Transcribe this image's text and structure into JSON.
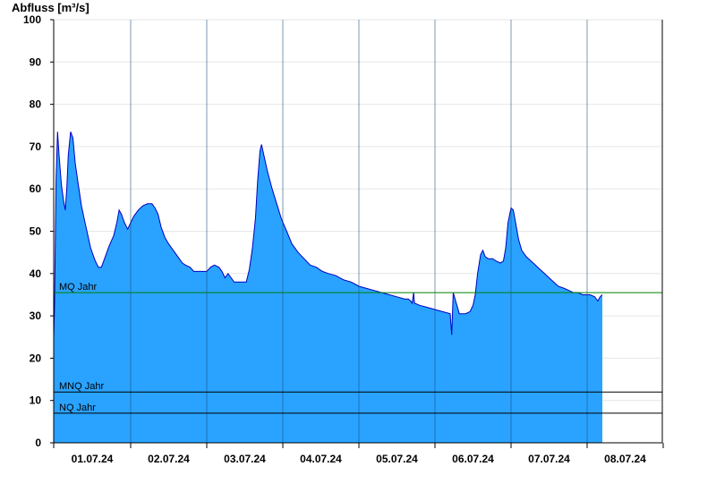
{
  "chart_data": {
    "type": "area",
    "ylabel": "Abfluss [m³/s]",
    "ylim": [
      0,
      100
    ],
    "yticks": [
      0,
      10,
      20,
      30,
      40,
      50,
      60,
      70,
      80,
      90,
      100
    ],
    "day_labels": [
      "01.07.24",
      "02.07.24",
      "03.07.24",
      "04.07.24",
      "05.07.24",
      "06.07.24",
      "07.07.24",
      "08.07.24"
    ],
    "x_range_days": [
      0,
      8
    ],
    "grid": "horizontal",
    "fill_color": "#29a3ff",
    "line_color": "#0000c0",
    "reference_lines": [
      {
        "label": "MQ Jahr",
        "value": 35.5,
        "color": "#008000"
      },
      {
        "label": "MNQ Jahr",
        "value": 12.0,
        "color": "#000000"
      },
      {
        "label": "NQ Jahr",
        "value": 7.0,
        "color": "#000000"
      }
    ],
    "series": [
      {
        "points": [
          [
            0.0,
            25
          ],
          [
            0.01,
            32
          ],
          [
            0.03,
            62
          ],
          [
            0.05,
            73.5
          ],
          [
            0.07,
            68
          ],
          [
            0.1,
            61
          ],
          [
            0.13,
            57
          ],
          [
            0.15,
            55
          ],
          [
            0.17,
            60
          ],
          [
            0.19,
            68
          ],
          [
            0.22,
            73.5
          ],
          [
            0.25,
            72
          ],
          [
            0.28,
            66
          ],
          [
            0.32,
            61
          ],
          [
            0.36,
            56
          ],
          [
            0.42,
            51
          ],
          [
            0.48,
            46
          ],
          [
            0.54,
            43
          ],
          [
            0.58,
            41.5
          ],
          [
            0.62,
            41.5
          ],
          [
            0.66,
            43.5
          ],
          [
            0.72,
            46.5
          ],
          [
            0.78,
            49
          ],
          [
            0.82,
            52
          ],
          [
            0.85,
            55
          ],
          [
            0.88,
            54
          ],
          [
            0.92,
            52
          ],
          [
            0.96,
            50.5
          ],
          [
            1.0,
            52
          ],
          [
            1.04,
            53.5
          ],
          [
            1.1,
            55
          ],
          [
            1.16,
            56
          ],
          [
            1.22,
            56.5
          ],
          [
            1.28,
            56.5
          ],
          [
            1.32,
            55.5
          ],
          [
            1.36,
            54
          ],
          [
            1.4,
            51
          ],
          [
            1.45,
            48.5
          ],
          [
            1.5,
            47
          ],
          [
            1.56,
            45.5
          ],
          [
            1.62,
            44
          ],
          [
            1.68,
            42.5
          ],
          [
            1.72,
            42
          ],
          [
            1.78,
            41.5
          ],
          [
            1.83,
            40.5
          ],
          [
            1.95,
            40.5
          ],
          [
            2.0,
            40.5
          ],
          [
            2.05,
            41.5
          ],
          [
            2.1,
            42
          ],
          [
            2.16,
            41.5
          ],
          [
            2.2,
            40.5
          ],
          [
            2.24,
            39
          ],
          [
            2.28,
            40
          ],
          [
            2.32,
            39
          ],
          [
            2.36,
            38
          ],
          [
            2.44,
            38
          ],
          [
            2.52,
            38
          ],
          [
            2.56,
            41
          ],
          [
            2.6,
            46
          ],
          [
            2.64,
            53
          ],
          [
            2.67,
            62
          ],
          [
            2.7,
            69
          ],
          [
            2.72,
            70.5
          ],
          [
            2.75,
            68
          ],
          [
            2.8,
            64
          ],
          [
            2.86,
            60
          ],
          [
            2.92,
            56.5
          ],
          [
            2.98,
            53
          ],
          [
            3.05,
            50
          ],
          [
            3.12,
            47
          ],
          [
            3.2,
            45
          ],
          [
            3.28,
            43.5
          ],
          [
            3.36,
            42
          ],
          [
            3.44,
            41.5
          ],
          [
            3.52,
            40.5
          ],
          [
            3.6,
            40
          ],
          [
            3.7,
            39.5
          ],
          [
            3.8,
            38.5
          ],
          [
            3.9,
            38
          ],
          [
            4.0,
            37
          ],
          [
            4.1,
            36.5
          ],
          [
            4.2,
            36
          ],
          [
            4.3,
            35.5
          ],
          [
            4.4,
            35
          ],
          [
            4.5,
            34.5
          ],
          [
            4.6,
            34
          ],
          [
            4.65,
            34
          ],
          [
            4.68,
            33.5
          ],
          [
            4.7,
            33
          ],
          [
            4.72,
            35.5
          ],
          [
            4.73,
            33
          ],
          [
            4.8,
            32.5
          ],
          [
            4.9,
            32
          ],
          [
            5.0,
            31.5
          ],
          [
            5.1,
            31
          ],
          [
            5.2,
            30.5
          ],
          [
            5.22,
            25.5
          ],
          [
            5.24,
            35.5
          ],
          [
            5.28,
            33
          ],
          [
            5.32,
            30.5
          ],
          [
            5.4,
            30.5
          ],
          [
            5.46,
            31
          ],
          [
            5.5,
            32.5
          ],
          [
            5.53,
            35
          ],
          [
            5.56,
            40
          ],
          [
            5.6,
            44.5
          ],
          [
            5.63,
            45.5
          ],
          [
            5.66,
            44
          ],
          [
            5.7,
            43.5
          ],
          [
            5.76,
            43.5
          ],
          [
            5.8,
            43
          ],
          [
            5.86,
            42.5
          ],
          [
            5.9,
            43
          ],
          [
            5.93,
            46
          ],
          [
            5.96,
            52
          ],
          [
            6.0,
            55.5
          ],
          [
            6.03,
            55
          ],
          [
            6.06,
            52
          ],
          [
            6.1,
            48
          ],
          [
            6.14,
            45.5
          ],
          [
            6.2,
            44
          ],
          [
            6.26,
            43
          ],
          [
            6.32,
            42
          ],
          [
            6.38,
            41
          ],
          [
            6.44,
            40
          ],
          [
            6.5,
            39
          ],
          [
            6.56,
            38
          ],
          [
            6.62,
            37
          ],
          [
            6.7,
            36.5
          ],
          [
            6.76,
            36
          ],
          [
            6.82,
            35.5
          ],
          [
            6.88,
            35.5
          ],
          [
            6.94,
            35
          ],
          [
            7.0,
            35
          ],
          [
            7.04,
            35
          ],
          [
            7.1,
            34.5
          ],
          [
            7.14,
            33.5
          ],
          [
            7.17,
            34.5
          ],
          [
            7.2,
            35
          ]
        ]
      }
    ]
  }
}
